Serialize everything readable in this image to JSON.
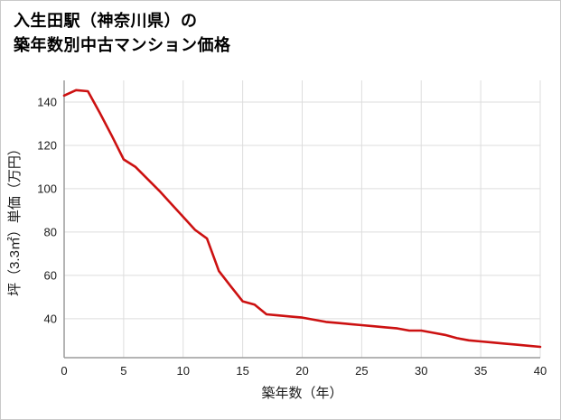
{
  "title": {
    "line1": "入生田駅（神奈川県）の",
    "line2": "築年数別中古マンション価格"
  },
  "chart_data": {
    "type": "line",
    "title": "入生田駅（神奈川県）の築年数別中古マンション価格",
    "xlabel": "築年数（年）",
    "ylabel": "坪（3.3㎡）単価（万円）",
    "x": [
      0,
      1,
      2,
      3,
      4,
      5,
      6,
      7,
      8,
      9,
      10,
      11,
      12,
      13,
      14,
      15,
      16,
      17,
      18,
      19,
      20,
      21,
      22,
      23,
      24,
      25,
      26,
      27,
      28,
      29,
      30,
      31,
      32,
      33,
      34,
      35,
      36,
      37,
      38,
      39,
      40
    ],
    "values": [
      143,
      145.5,
      145,
      135,
      124.5,
      113.5,
      110,
      104.5,
      99,
      93,
      87,
      81,
      77,
      62,
      55,
      48,
      46.5,
      42,
      41.5,
      41,
      40.5,
      39.5,
      38.5,
      38,
      37.5,
      37,
      36.5,
      36,
      35.5,
      34.5,
      34.5,
      33.5,
      32.5,
      31,
      30,
      29.5,
      29,
      28.5,
      28,
      27.5,
      27
    ],
    "x_ticks": [
      0,
      5,
      10,
      15,
      20,
      25,
      30,
      35,
      40
    ],
    "y_ticks": [
      40,
      60,
      80,
      100,
      120,
      140
    ],
    "xlim": [
      0,
      40
    ],
    "ylim": [
      22,
      150
    ],
    "grid": true,
    "legend": "none",
    "line_color": "#cc1111",
    "grid_color": "#dddddd",
    "axis_color": "#9b9b9b",
    "text_color": "#1a1a1a"
  }
}
